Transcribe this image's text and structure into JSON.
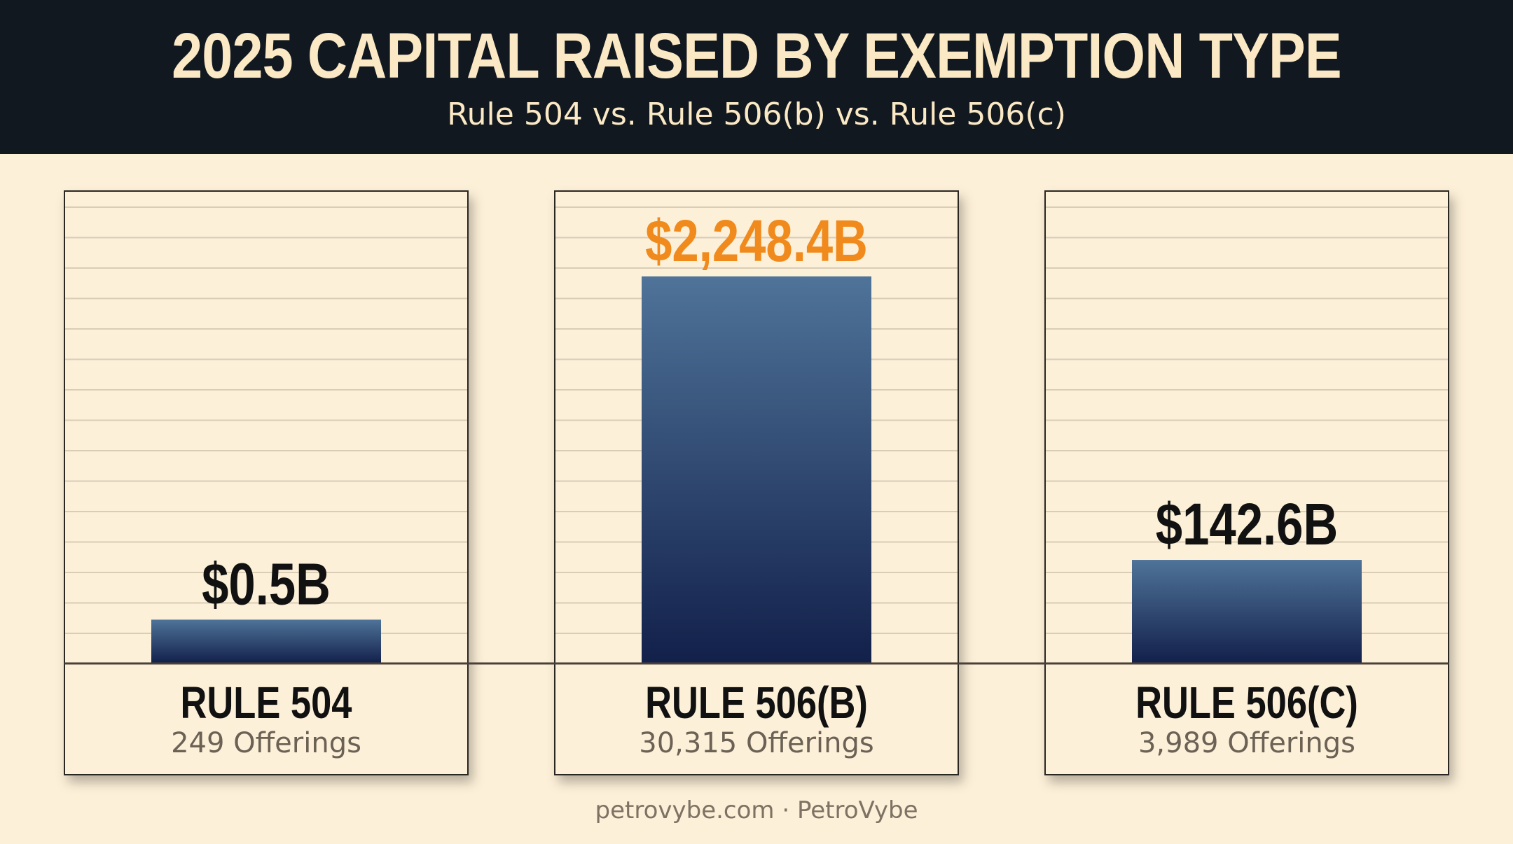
{
  "header": {
    "title": "2025 Capital Raised by Exemption Type",
    "subtitle": "Rule 504 vs. Rule 506(b) vs. Rule 506(c)"
  },
  "footer": {
    "text": "petrovybe.com · PetroVybe"
  },
  "colors": {
    "header_bg": "#111820",
    "background": "#fdf0d8",
    "bar_top": "#4f7399",
    "bar_bottom": "#12204a",
    "highlight_label": "#f08a1c",
    "label_dark": "#111111",
    "subtext": "#6b6154"
  },
  "chart_data": {
    "type": "bar",
    "categories": [
      "RULE 504",
      "RULE 506(B)",
      "RULE 506(C)"
    ],
    "values": [
      0.5,
      2248.4,
      142.6
    ],
    "value_labels": [
      "$0.5B",
      "$2,248.4B",
      "$142.6B"
    ],
    "offerings": [
      "249 Offerings",
      "30,315 Offerings",
      "3,989 Offerings"
    ],
    "highlight_index": 1,
    "unit": "$B",
    "grid": true
  }
}
